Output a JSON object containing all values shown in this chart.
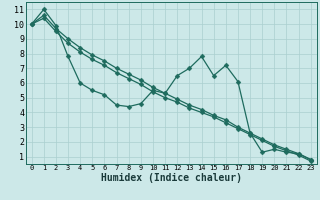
{
  "xlabel": "Humidex (Indice chaleur)",
  "bg_color": "#cce8e8",
  "grid_color": "#aacfcf",
  "line_color": "#1e6b5e",
  "xlim": [
    -0.5,
    23.5
  ],
  "ylim": [
    0.5,
    11.5
  ],
  "xticks": [
    0,
    1,
    2,
    3,
    4,
    5,
    6,
    7,
    8,
    9,
    10,
    11,
    12,
    13,
    14,
    15,
    16,
    17,
    18,
    19,
    20,
    21,
    22,
    23
  ],
  "yticks": [
    1,
    2,
    3,
    4,
    5,
    6,
    7,
    8,
    9,
    10,
    11
  ],
  "line1_x": [
    0,
    1,
    2,
    3,
    4,
    5,
    6,
    7,
    8,
    9,
    10,
    11,
    12,
    13,
    14,
    15,
    16,
    17,
    18,
    19,
    20,
    21,
    22,
    23
  ],
  "line1_y": [
    10.0,
    11.0,
    9.9,
    7.8,
    6.0,
    5.5,
    5.2,
    4.5,
    4.4,
    4.6,
    5.5,
    5.3,
    6.5,
    7.0,
    7.8,
    6.5,
    7.2,
    6.1,
    2.6,
    1.3,
    1.5,
    1.3,
    1.2,
    0.8
  ],
  "line2_x": [
    0,
    1,
    2,
    3,
    4,
    5,
    6,
    7,
    8,
    9,
    10,
    11,
    12,
    13,
    14,
    15,
    16,
    17,
    18,
    19,
    20,
    21,
    22,
    23
  ],
  "line2_y": [
    10.0,
    10.6,
    9.7,
    9.0,
    8.4,
    7.9,
    7.5,
    7.0,
    6.6,
    6.2,
    5.7,
    5.3,
    4.9,
    4.5,
    4.2,
    3.8,
    3.5,
    3.0,
    2.6,
    2.2,
    1.8,
    1.5,
    1.2,
    0.8
  ],
  "line3_x": [
    0,
    1,
    2,
    3,
    4,
    5,
    6,
    7,
    8,
    9,
    10,
    11,
    12,
    13,
    14,
    15,
    16,
    17,
    18,
    19,
    20,
    21,
    22,
    23
  ],
  "line3_y": [
    10.0,
    10.4,
    9.5,
    8.7,
    8.1,
    7.6,
    7.2,
    6.7,
    6.3,
    5.9,
    5.4,
    5.0,
    4.7,
    4.3,
    4.0,
    3.7,
    3.3,
    2.9,
    2.5,
    2.1,
    1.7,
    1.4,
    1.1,
    0.7
  ],
  "xlabel_fontsize": 7,
  "tick_fontsize": 5,
  "marker_size": 2.5,
  "line_width": 0.9
}
